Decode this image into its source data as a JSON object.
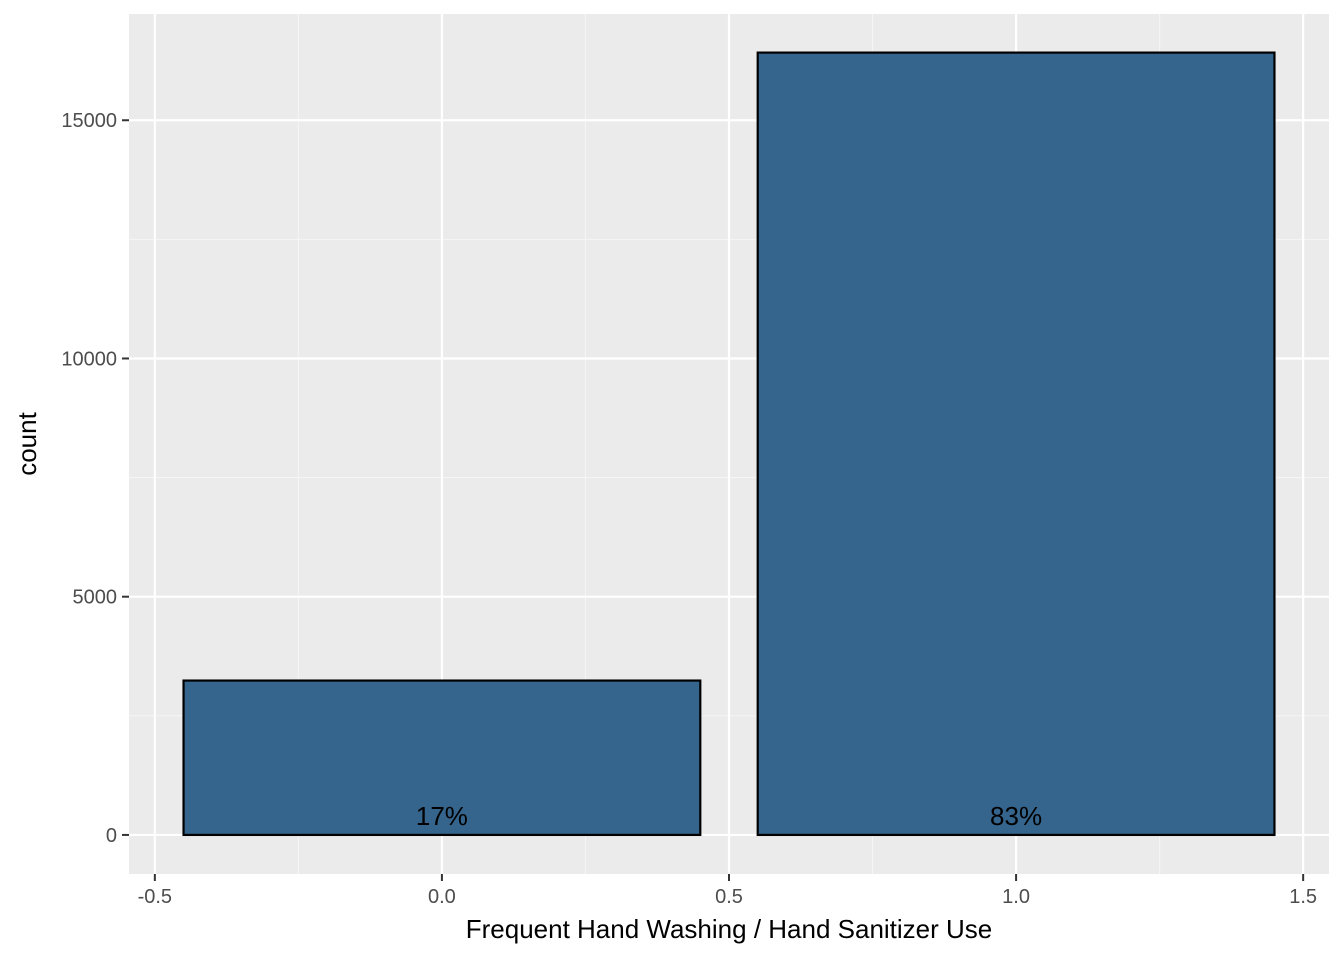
{
  "chart_data": {
    "type": "bar",
    "xlabel": "Frequent Hand Washing / Hand Sanitizer Use",
    "ylabel": "count",
    "xlim": [
      -0.545,
      1.545
    ],
    "ylim": [
      -820,
      17230
    ],
    "x_ticks": [
      -0.5,
      0.0,
      0.5,
      1.0,
      1.5
    ],
    "x_tick_labels": [
      "-0.5",
      "0.0",
      "0.5",
      "1.0",
      "1.5"
    ],
    "y_ticks": [
      0,
      5000,
      10000,
      15000
    ],
    "y_tick_labels": [
      "0",
      "5000",
      "10000",
      "15000"
    ],
    "grid": true,
    "bar_width": 0.9,
    "bars": [
      {
        "x": 0,
        "value": 3240,
        "label": "17%"
      },
      {
        "x": 1,
        "value": 16420,
        "label": "83%"
      }
    ],
    "colors": {
      "bar_fill": "#35648c",
      "bar_stroke": "#000000",
      "panel_bg": "#ebebeb",
      "grid_major": "#ffffff",
      "grid_minor": "#f5f5f5"
    }
  }
}
